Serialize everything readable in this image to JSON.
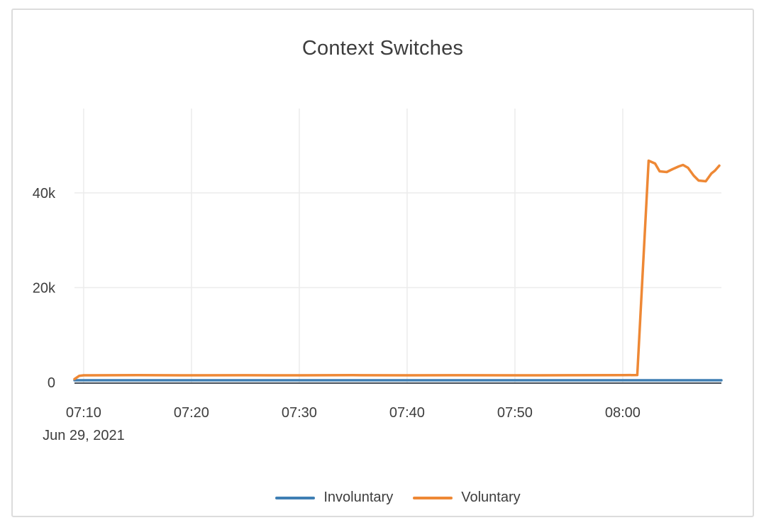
{
  "chart_data": {
    "type": "line",
    "title": "Context Switches",
    "x_axis": {
      "kind": "time",
      "date_label": "Jun 29, 2021",
      "range_minutes_after_0700": [
        9.15,
        69.15
      ],
      "ticks": [
        {
          "minutes": 10,
          "label": "07:10"
        },
        {
          "minutes": 20,
          "label": "07:20"
        },
        {
          "minutes": 30,
          "label": "07:30"
        },
        {
          "minutes": 40,
          "label": "07:40"
        },
        {
          "minutes": 50,
          "label": "07:50"
        },
        {
          "minutes": 60,
          "label": "08:00"
        }
      ]
    },
    "y_axis": {
      "range": [
        0,
        57800
      ],
      "ticks": [
        {
          "value": 0,
          "label": "0"
        },
        {
          "value": 20000,
          "label": "20k"
        },
        {
          "value": 40000,
          "label": "40k"
        }
      ],
      "grid": true
    },
    "legend_position": "bottom-center",
    "series": [
      {
        "name": "Involuntary",
        "color": "#3f7fb4",
        "points": [
          [
            9.15,
            450
          ],
          [
            69.15,
            450
          ]
        ]
      },
      {
        "name": "Voluntary",
        "color": "#ee8835",
        "points": [
          [
            9.15,
            700
          ],
          [
            9.6,
            1400
          ],
          [
            10,
            1500
          ],
          [
            15,
            1520
          ],
          [
            20,
            1490
          ],
          [
            25,
            1510
          ],
          [
            30,
            1490
          ],
          [
            35,
            1520
          ],
          [
            40,
            1500
          ],
          [
            45,
            1510
          ],
          [
            50,
            1490
          ],
          [
            55,
            1510
          ],
          [
            60,
            1530
          ],
          [
            61.35,
            1560
          ],
          [
            62.4,
            46800
          ],
          [
            63.0,
            46200
          ],
          [
            63.42,
            44550
          ],
          [
            64.08,
            44400
          ],
          [
            64.61,
            45000
          ],
          [
            65.2,
            45600
          ],
          [
            65.59,
            45900
          ],
          [
            66.05,
            45300
          ],
          [
            66.58,
            43650
          ],
          [
            67.04,
            42600
          ],
          [
            67.7,
            42450
          ],
          [
            68.22,
            44100
          ],
          [
            68.55,
            44700
          ],
          [
            68.95,
            45750
          ]
        ]
      }
    ],
    "colors": {
      "grid": "#ececec",
      "zeroline": "#47505a",
      "text": "#3d3d3d",
      "card_border": "#dcdcdc",
      "background": "#ffffff"
    }
  }
}
